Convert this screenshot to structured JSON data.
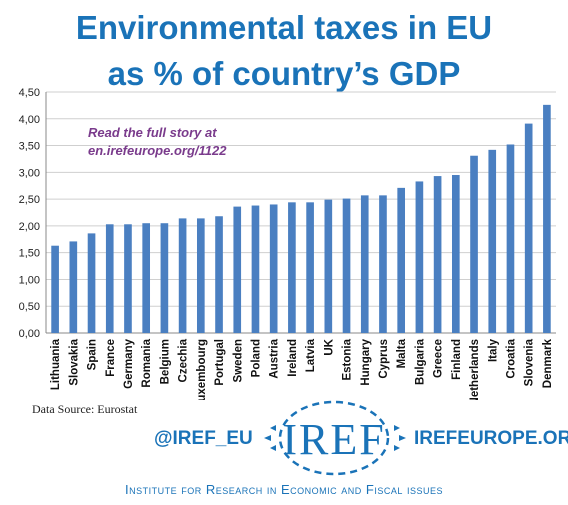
{
  "title_line1": "Environmental taxes in EU",
  "title_line2": "as % of country’s GDP",
  "note_line1": "Read the full story at",
  "note_line2": "en.irefeurope.org/1122",
  "source": "Data Source: Eurostat",
  "twitter": "@IREF_EU",
  "logo_text": "IREF",
  "website": "IREFEUROPE.ORG",
  "institute": "Institute for Research in Economic and Fiscal issues",
  "colors": {
    "title": "#1a73b8",
    "bar": "#4a7fc1",
    "note": "#7a3b8c"
  },
  "chart_data": {
    "type": "bar",
    "categories": [
      "Lithuania",
      "Slovakia",
      "Spain",
      "France",
      "Germany",
      "Romania",
      "Belgium",
      "Czechia",
      "Luxembourg",
      "Portugal",
      "Sweden",
      "Poland",
      "Austria",
      "Ireland",
      "Latvia",
      "UK",
      "Estonia",
      "Hungary",
      "Cyprus",
      "Malta",
      "Bulgaria",
      "Greece",
      "Finland",
      "Netherlands",
      "Italy",
      "Croatia",
      "Slovenia",
      "Denmark"
    ],
    "values": [
      1.63,
      1.71,
      1.86,
      2.03,
      2.03,
      2.05,
      2.05,
      2.14,
      2.14,
      2.18,
      2.36,
      2.38,
      2.4,
      2.44,
      2.44,
      2.49,
      2.51,
      2.57,
      2.57,
      2.71,
      2.83,
      2.93,
      2.95,
      3.31,
      3.42,
      3.52,
      3.91,
      4.26
    ],
    "ylim": [
      0,
      4.5
    ],
    "yticks": [
      "0,00",
      "0,50",
      "1,00",
      "1,50",
      "2,00",
      "2,50",
      "3,00",
      "3,50",
      "4,00",
      "4,50"
    ],
    "grid": true,
    "legend": "none"
  }
}
